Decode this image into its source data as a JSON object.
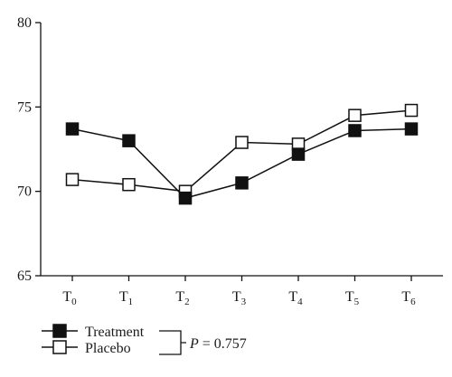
{
  "chart_data": {
    "type": "line",
    "categories": [
      {
        "base": "T",
        "sub": "0"
      },
      {
        "base": "T",
        "sub": "1"
      },
      {
        "base": "T",
        "sub": "2"
      },
      {
        "base": "T",
        "sub": "3"
      },
      {
        "base": "T",
        "sub": "4"
      },
      {
        "base": "T",
        "sub": "5"
      },
      {
        "base": "T",
        "sub": "6"
      }
    ],
    "ylim": [
      65,
      80
    ],
    "yticks": [
      65,
      70,
      75,
      80
    ],
    "grid": false,
    "legend_position": "bottom-left",
    "series": [
      {
        "name": "Treatment",
        "marker": "filled-square",
        "color": "#111111",
        "values": [
          73.7,
          73.0,
          69.6,
          70.5,
          72.2,
          73.6,
          73.7
        ]
      },
      {
        "name": "Placebo",
        "marker": "open-square",
        "color": "#111111",
        "values": [
          70.7,
          70.4,
          70.0,
          72.9,
          72.8,
          74.5,
          74.8
        ]
      }
    ],
    "annotation": {
      "italic": "P",
      "rest": " = 0.757"
    }
  }
}
